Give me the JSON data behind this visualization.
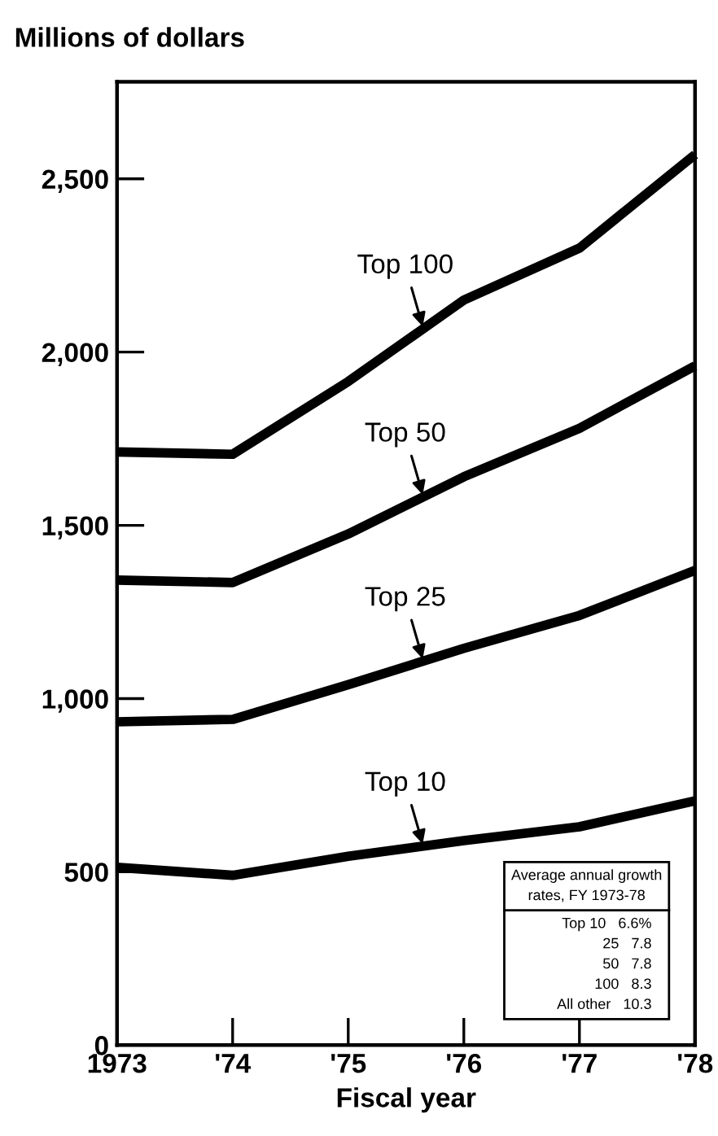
{
  "chart_data": {
    "type": "line",
    "ylabel": "Millions of dollars",
    "xlabel": "Fiscal year",
    "x": [
      1973,
      1974,
      1975,
      1976,
      1977,
      1978
    ],
    "series": [
      {
        "name": "Top 100",
        "color": "#000000",
        "values": [
          1712,
          1705,
          1915,
          2150,
          2300,
          2570
        ]
      },
      {
        "name": "Top 50",
        "color": "#000000",
        "values": [
          1342,
          1335,
          1475,
          1640,
          1780,
          1960
        ]
      },
      {
        "name": "Top 25",
        "color": "#000000",
        "values": [
          933,
          940,
          1040,
          1145,
          1240,
          1370
        ]
      },
      {
        "name": "Top 10",
        "color": "#000000",
        "values": [
          513,
          490,
          545,
          590,
          630,
          705
        ]
      }
    ],
    "xlim": [
      1973,
      1978
    ],
    "ylim": [
      0,
      2780
    ],
    "xticks": [
      1973,
      {
        "value": 1974,
        "label": "'74"
      },
      {
        "value": 1975,
        "label": "'75"
      },
      {
        "value": 1976,
        "label": "'76"
      },
      {
        "value": 1977,
        "label": "'77"
      },
      {
        "value": 1978,
        "label": "'78"
      }
    ],
    "yticks": [
      0,
      {
        "value": 500,
        "label": "500"
      },
      {
        "value": 1000,
        "label": "1,000"
      },
      {
        "value": 1500,
        "label": "1,500"
      },
      {
        "value": 2000,
        "label": "2,000"
      },
      {
        "value": 2500,
        "label": "2,500"
      }
    ],
    "grid": false,
    "legend": false,
    "marker": "none",
    "line_style": "solid",
    "annotations": [
      "Average annual growth",
      "rates, FY 1973-78",
      "Top 10   6.6%",
      "25   7.8",
      "50   7.8",
      "100   8.3",
      "All other   10.3"
    ]
  }
}
